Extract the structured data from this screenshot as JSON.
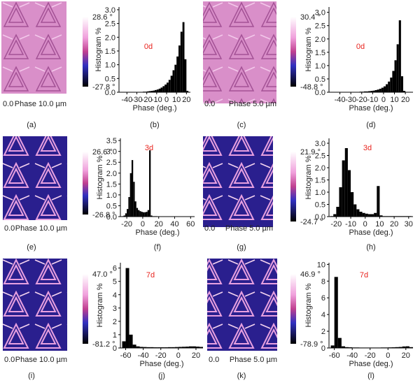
{
  "images": [
    {
      "panel": "(a)",
      "scale_max": "28.6 °",
      "scale_min": "-27.8 °",
      "origin": "0.0",
      "caption": "Phase 10.0 µm"
    },
    {
      "panel": "(c)",
      "scale_max": "30.4 °",
      "scale_min": "-48.8 °",
      "origin": "0.0",
      "caption": "Phase 5.0 µm"
    },
    {
      "panel": "(e)",
      "scale_max": "26.6 °",
      "scale_min": "-26.8 °",
      "origin": "0.0",
      "caption": "Phase 10.0 µm"
    },
    {
      "panel": "(g)",
      "scale_max": "21.9 °",
      "scale_min": "-24.7 °",
      "origin": "0.0",
      "caption": "Phase 5.0 µm"
    },
    {
      "panel": "(i)",
      "scale_max": "47.0 °",
      "scale_min": "-81.2 °",
      "origin": "0.0",
      "caption": "Phase 10.0 µm"
    },
    {
      "panel": "(k)",
      "scale_max": "46.9 °",
      "scale_min": "-78.9 °",
      "origin": "0.0",
      "caption": "Phase 5.0 µm"
    }
  ],
  "chart_data": [
    {
      "type": "histogram",
      "panel": "(b)",
      "title": "0d",
      "title_color": "#e8251f",
      "xlabel": "Phase (deg.)",
      "ylabel": "Histogram %",
      "color": "#000000",
      "bins": [
        -46,
        -44,
        -42,
        -40,
        -38,
        -36,
        -34,
        -32,
        -30,
        -28,
        -26,
        -24,
        -22,
        -20,
        -18,
        -16,
        -14,
        -12,
        -10,
        -8,
        -6,
        -4,
        -2,
        0,
        2,
        4,
        6,
        8,
        10,
        12,
        14,
        16,
        18,
        20,
        22
      ],
      "counts": [
        0,
        0,
        0,
        0,
        0,
        0,
        0,
        0,
        0,
        0.01,
        0.01,
        0.02,
        0.02,
        0.03,
        0.04,
        0.05,
        0.06,
        0.08,
        0.1,
        0.13,
        0.17,
        0.22,
        0.28,
        0.35,
        0.45,
        0.6,
        0.8,
        1.0,
        1.3,
        1.7,
        2.2,
        2.55,
        1.2,
        0.05
      ],
      "xlim": [
        -48,
        24
      ],
      "ylim": [
        0,
        3.1
      ],
      "xticks": [
        -40,
        -30,
        -20,
        -10,
        0,
        10,
        20
      ],
      "yticks": [
        {
          "value": 0,
          "label": "0.0"
        },
        0.5,
        {
          "value": 1,
          "label": "1.0"
        },
        1.5,
        {
          "value": 2,
          "label": "2.0"
        },
        2.5,
        {
          "value": 3,
          "label": "3.0"
        }
      ]
    },
    {
      "type": "histogram",
      "panel": "(d)",
      "title": "0d",
      "title_color": "#e8251f",
      "xlabel": "Phase (deg.)",
      "ylabel": "Histogram %",
      "color": "#000000",
      "bins": [
        -48,
        -46,
        -44,
        -42,
        -40,
        -38,
        -36,
        -34,
        -32,
        -30,
        -28,
        -26,
        -24,
        -22,
        -20,
        -18,
        -16,
        -14,
        -12,
        -10,
        -8,
        -6,
        -4,
        -2,
        0,
        2,
        4,
        6,
        8,
        10,
        12,
        14,
        16,
        18,
        20,
        22,
        24
      ],
      "counts": [
        0,
        0,
        0,
        0,
        0,
        0,
        0,
        0,
        0,
        0,
        0.01,
        0.01,
        0.01,
        0.02,
        0.02,
        0.03,
        0.03,
        0.04,
        0.05,
        0.06,
        0.08,
        0.1,
        0.13,
        0.17,
        0.22,
        0.3,
        0.4,
        0.55,
        0.8,
        1.2,
        1.8,
        2.7,
        0.6,
        0.05,
        0,
        0
      ],
      "xlim": [
        -50,
        27
      ],
      "ylim": [
        0,
        3.2
      ],
      "xticks": [
        -40,
        -30,
        -20,
        -10,
        0,
        10,
        20
      ],
      "yticks": [
        {
          "value": 0,
          "label": "0.0"
        },
        0.5,
        {
          "value": 1,
          "label": "1.0"
        },
        1.5,
        {
          "value": 2,
          "label": "2.0"
        },
        2.5,
        {
          "value": 3,
          "label": "3.0"
        }
      ]
    },
    {
      "type": "histogram",
      "panel": "(f)",
      "title": "3d",
      "title_color": "#e8251f",
      "xlabel": "Phase (deg.)",
      "ylabel": "Histogram %",
      "color": "#000000",
      "bins": [
        -26,
        -24,
        -22,
        -20,
        -18,
        -16,
        -14,
        -12,
        -10,
        -8,
        -6,
        -4,
        -2,
        0,
        2,
        4,
        6,
        8,
        10,
        12,
        14,
        16,
        18,
        20,
        22,
        24,
        26,
        28,
        30,
        32,
        34,
        36,
        38,
        40,
        42,
        44,
        46,
        48,
        50,
        52,
        54,
        56,
        58,
        60,
        62,
        64
      ],
      "counts": [
        0.02,
        0.05,
        0.15,
        0.35,
        0.9,
        2.0,
        2.6,
        1.6,
        0.7,
        0.4,
        0.3,
        0.25,
        0.22,
        0.2,
        0.2,
        0.22,
        0.3,
        3.05,
        0.05,
        0.02,
        0.02,
        0.02,
        0.01,
        0.01,
        0.01,
        0.01,
        0.01,
        0.01,
        0.01,
        0.01,
        0.01,
        0.01,
        0.01,
        0.01,
        0.01,
        0.01,
        0.01,
        0.01,
        0.01,
        0.01,
        0.01,
        0.01,
        0.01,
        0.01,
        0.01
      ],
      "xlim": [
        -28,
        65
      ],
      "ylim": [
        0,
        3.6
      ],
      "xticks": [
        -20,
        0,
        20,
        40,
        60
      ],
      "yticks": [
        {
          "value": 0,
          "label": "0.0"
        },
        0.5,
        {
          "value": 1,
          "label": "1.0"
        },
        1.5,
        {
          "value": 2,
          "label": "2.0"
        },
        2.5,
        {
          "value": 3,
          "label": "3.0"
        },
        3.5
      ]
    },
    {
      "type": "histogram",
      "panel": "(h)",
      "title": "3d",
      "title_color": "#e8251f",
      "xlabel": "Phase (deg.)",
      "ylabel": "Histogram %",
      "color": "#000000",
      "bins": [
        -24,
        -22,
        -20,
        -18,
        -16,
        -14,
        -12,
        -10,
        -8,
        -6,
        -4,
        -2,
        0,
        2,
        4,
        6,
        8,
        10,
        12,
        14,
        16,
        18,
        20,
        22,
        24,
        26,
        28,
        30,
        32
      ],
      "counts": [
        0.02,
        0.1,
        0.4,
        1.2,
        2.3,
        2.8,
        1.9,
        1.0,
        0.5,
        0.3,
        0.2,
        0.15,
        0.12,
        0.1,
        0.1,
        0.15,
        1.25,
        0.05,
        0.02,
        0.02,
        0.02,
        0.02,
        0.02,
        0.02,
        0.02,
        0.02,
        0.02,
        0.02
      ],
      "xlim": [
        -25,
        33
      ],
      "ylim": [
        0,
        3.2
      ],
      "xticks": [
        -20,
        -10,
        0,
        10,
        20,
        30
      ],
      "yticks": [
        {
          "value": 0,
          "label": "0.0"
        },
        0.5,
        {
          "value": 1,
          "label": "1.0"
        },
        1.5,
        {
          "value": 2,
          "label": "2.0"
        },
        2.5,
        {
          "value": 3,
          "label": "3.0"
        }
      ]
    },
    {
      "type": "histogram",
      "panel": "(j)",
      "title": "7d",
      "title_color": "#e8251f",
      "xlabel": "Phase (deg.)",
      "ylabel": "Histogram %",
      "color": "#000000",
      "bins": [
        -64,
        -60,
        -56,
        -52,
        -48,
        -44,
        -40,
        -36,
        -32,
        -28,
        -24,
        -20,
        -16,
        -12,
        -8,
        -4,
        0,
        4,
        8,
        12,
        16,
        20,
        24,
        28
      ],
      "counts": [
        0.5,
        6.0,
        1.0,
        0.25,
        0.12,
        0.08,
        0.07,
        0.06,
        0.06,
        0.05,
        0.05,
        0.05,
        0.05,
        0.06,
        0.06,
        0.07,
        0.08,
        0.09,
        0.1,
        0.12,
        0.12,
        0.1,
        0.08
      ],
      "xlim": [
        -66,
        28
      ],
      "ylim": [
        0,
        6.4
      ],
      "xticks": [
        -60,
        -40,
        -20,
        0,
        20
      ],
      "yticks": [
        0,
        1,
        2,
        3,
        4,
        5,
        6
      ]
    },
    {
      "type": "histogram",
      "panel": "(l)",
      "title": "7d",
      "title_color": "#e8251f",
      "xlabel": "Phase (deg.)",
      "ylabel": "Histogram %",
      "color": "#000000",
      "bins": [
        -64,
        -60,
        -56,
        -52,
        -48,
        -44,
        -40,
        -36,
        -32,
        -28,
        -24,
        -20,
        -16,
        -12,
        -8,
        -4,
        0,
        4,
        8,
        12,
        16,
        20,
        24,
        28
      ],
      "counts": [
        0.3,
        8.5,
        1.2,
        0.2,
        0.1,
        0.08,
        0.06,
        0.06,
        0.05,
        0.05,
        0.05,
        0.05,
        0.05,
        0.05,
        0.06,
        0.06,
        0.07,
        0.08,
        0.1,
        0.12,
        0.18,
        0.2,
        0.1
      ],
      "xlim": [
        -66,
        28
      ],
      "ylim": [
        0,
        10.2
      ],
      "xticks": [
        -60,
        -40,
        -20,
        0,
        20
      ],
      "yticks": [
        0,
        2,
        4,
        6,
        8,
        10
      ]
    }
  ]
}
